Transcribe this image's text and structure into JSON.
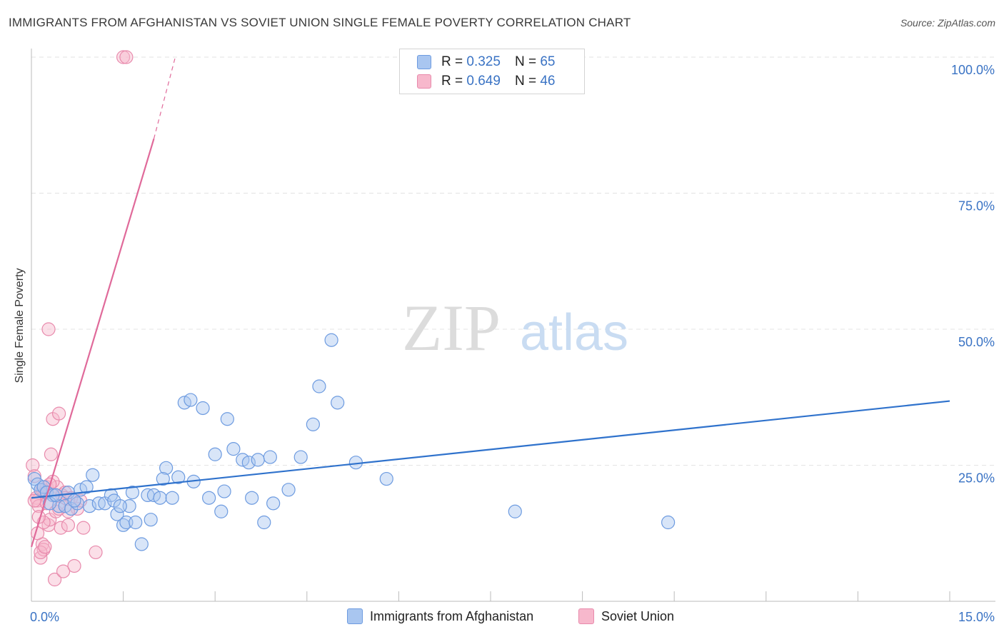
{
  "title": "IMMIGRANTS FROM AFGHANISTAN VS SOVIET UNION SINGLE FEMALE POVERTY CORRELATION CHART",
  "source": "Source: ZipAtlas.com",
  "watermark": {
    "part1": "ZIP",
    "part2": "atlas"
  },
  "colors": {
    "blue": "#2f72cc",
    "blue_fill": "#a9c6f0",
    "pink": "#e06a9a",
    "pink_fill": "#f7b8cc",
    "tick_label": "#3a73c4"
  },
  "legend": {
    "rows": [
      {
        "r_label": "R =",
        "r_value": "0.325",
        "n_label": "N =",
        "n_value": "65"
      },
      {
        "r_label": "R =",
        "r_value": "0.649",
        "n_label": "N =",
        "n_value": "46"
      }
    ]
  },
  "bottom_legend": [
    "Immigrants from Afghanistan",
    "Soviet Union"
  ],
  "chart_data": {
    "type": "scatter",
    "title": "IMMIGRANTS FROM AFGHANISTAN VS SOVIET UNION SINGLE FEMALE POVERTY CORRELATION CHART",
    "xlabel": "",
    "ylabel": "Single Female Poverty",
    "xlim": [
      0,
      15
    ],
    "ylim": [
      0,
      100
    ],
    "x_tick_labels": {
      "left": "0.0%",
      "right": "15.0%"
    },
    "y_ticks": [
      25,
      50,
      75,
      100
    ],
    "y_tick_labels": [
      "25.0%",
      "50.0%",
      "75.0%",
      "100.0%"
    ],
    "series": [
      {
        "name": "Immigrants from Afghanistan",
        "color": "#2f72cc",
        "trend": {
          "x0": 0,
          "y0": 19.0,
          "x1": 15,
          "y1": 36.8
        },
        "points": [
          [
            0.05,
            22.5
          ],
          [
            0.1,
            21.5
          ],
          [
            0.15,
            20.5
          ],
          [
            0.2,
            21.0
          ],
          [
            0.25,
            20.0
          ],
          [
            0.35,
            19.5
          ],
          [
            0.45,
            17.5
          ],
          [
            0.55,
            17.5
          ],
          [
            0.65,
            17.0
          ],
          [
            0.75,
            18.0
          ],
          [
            0.8,
            20.5
          ],
          [
            0.9,
            21.0
          ],
          [
            0.95,
            17.5
          ],
          [
            1.0,
            23.2
          ],
          [
            1.1,
            18.0
          ],
          [
            1.2,
            18.0
          ],
          [
            1.3,
            19.5
          ],
          [
            1.35,
            18.5
          ],
          [
            1.4,
            16.0
          ],
          [
            1.5,
            14.0
          ],
          [
            1.55,
            14.5
          ],
          [
            1.6,
            17.5
          ],
          [
            1.65,
            20.0
          ],
          [
            1.7,
            14.5
          ],
          [
            1.8,
            10.5
          ],
          [
            1.9,
            19.5
          ],
          [
            1.95,
            15.0
          ],
          [
            2.0,
            19.5
          ],
          [
            2.1,
            19.0
          ],
          [
            2.2,
            24.5
          ],
          [
            2.3,
            19.0
          ],
          [
            2.4,
            22.8
          ],
          [
            2.5,
            36.5
          ],
          [
            2.6,
            37.0
          ],
          [
            2.65,
            22.0
          ],
          [
            2.8,
            35.5
          ],
          [
            2.9,
            19.0
          ],
          [
            3.0,
            27.0
          ],
          [
            3.1,
            16.5
          ],
          [
            3.15,
            20.2
          ],
          [
            3.2,
            33.5
          ],
          [
            3.3,
            28.0
          ],
          [
            3.45,
            26.0
          ],
          [
            3.55,
            25.5
          ],
          [
            3.6,
            19.0
          ],
          [
            3.7,
            26.0
          ],
          [
            3.8,
            14.5
          ],
          [
            3.9,
            26.5
          ],
          [
            3.95,
            18.0
          ],
          [
            4.2,
            20.5
          ],
          [
            4.4,
            26.5
          ],
          [
            4.6,
            32.5
          ],
          [
            4.7,
            39.5
          ],
          [
            4.9,
            48.0
          ],
          [
            5.0,
            36.5
          ],
          [
            5.3,
            25.5
          ],
          [
            5.8,
            22.5
          ],
          [
            7.9,
            16.5
          ],
          [
            10.4,
            14.5
          ],
          [
            0.3,
            18.0
          ],
          [
            0.4,
            19.5
          ],
          [
            0.6,
            20.0
          ],
          [
            1.45,
            17.5
          ],
          [
            2.15,
            22.5
          ],
          [
            0.7,
            18.5
          ]
        ]
      },
      {
        "name": "Soviet Union",
        "color": "#e06a9a",
        "trend": {
          "x0": 0,
          "y0": 10.0,
          "x1": 2.0,
          "y1": 85.0
        },
        "trend_dashed": {
          "x0": 2.0,
          "y0": 85.0,
          "x1": 2.35,
          "y1": 100
        },
        "points": [
          [
            0.02,
            25.0
          ],
          [
            0.05,
            23.0
          ],
          [
            0.08,
            19.0
          ],
          [
            0.1,
            18.5
          ],
          [
            0.12,
            17.5
          ],
          [
            0.15,
            8.0
          ],
          [
            0.18,
            10.5
          ],
          [
            0.2,
            9.5
          ],
          [
            0.22,
            20.0
          ],
          [
            0.25,
            21.0
          ],
          [
            0.28,
            14.0
          ],
          [
            0.3,
            15.0
          ],
          [
            0.32,
            27.0
          ],
          [
            0.35,
            33.5
          ],
          [
            0.38,
            4.0
          ],
          [
            0.4,
            16.5
          ],
          [
            0.42,
            21.0
          ],
          [
            0.45,
            34.5
          ],
          [
            0.48,
            13.5
          ],
          [
            0.5,
            19.5
          ],
          [
            0.52,
            5.5
          ],
          [
            0.55,
            20.0
          ],
          [
            0.6,
            14.0
          ],
          [
            0.65,
            19.0
          ],
          [
            0.7,
            6.5
          ],
          [
            0.75,
            17.0
          ],
          [
            0.8,
            18.5
          ],
          [
            0.85,
            13.5
          ],
          [
            1.05,
            9.0
          ],
          [
            0.28,
            50.0
          ],
          [
            1.5,
            100
          ],
          [
            1.55,
            100
          ],
          [
            0.1,
            12.5
          ],
          [
            0.18,
            20.5
          ],
          [
            0.25,
            18.0
          ],
          [
            0.35,
            22.0
          ],
          [
            0.4,
            19.5
          ],
          [
            0.15,
            9.0
          ],
          [
            0.2,
            14.5
          ],
          [
            0.3,
            21.5
          ],
          [
            0.6,
            16.5
          ],
          [
            0.45,
            17.0
          ],
          [
            0.55,
            19.0
          ],
          [
            0.05,
            18.5
          ],
          [
            0.12,
            15.5
          ],
          [
            0.22,
            10.0
          ]
        ]
      }
    ]
  }
}
